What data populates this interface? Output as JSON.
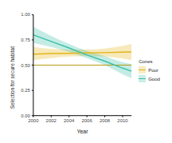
{
  "chart_data": {
    "type": "line",
    "x_label": "Year",
    "y_label": "Selection for secure habitat",
    "legend_title": "Cones",
    "legend": "right",
    "x": [
      2000,
      2002,
      2004,
      2006,
      2008,
      2010,
      2011
    ],
    "series": [
      {
        "name": "Poor",
        "color": "#e3b51c",
        "values": [
          0.61,
          0.615,
          0.618,
          0.621,
          0.624,
          0.628,
          0.63
        ],
        "lower": [
          0.55,
          0.57,
          0.585,
          0.59,
          0.585,
          0.565,
          0.55
        ],
        "upper": [
          0.68,
          0.66,
          0.655,
          0.655,
          0.665,
          0.69,
          0.71
        ]
      },
      {
        "name": "Good",
        "color": "#3cc0a8",
        "values": [
          0.8,
          0.735,
          0.67,
          0.6,
          0.54,
          0.47,
          0.44
        ],
        "lower": [
          0.72,
          0.68,
          0.63,
          0.57,
          0.5,
          0.41,
          0.37
        ],
        "upper": [
          0.88,
          0.79,
          0.71,
          0.64,
          0.59,
          0.53,
          0.51
        ]
      }
    ],
    "hline": 0.5,
    "xlim": [
      2000,
      2011
    ],
    "xticks": [
      2000,
      2002,
      2004,
      2006,
      2008,
      2010
    ],
    "ylim": [
      0,
      1
    ],
    "yticks": [
      {
        "value": 0,
        "label": "0.00"
      },
      {
        "value": 0.25,
        "label": "0.25"
      },
      {
        "value": 0.5,
        "label": "0.50"
      },
      {
        "value": 0.75,
        "label": "0.75"
      },
      {
        "value": 1,
        "label": "1.00"
      }
    ],
    "grid": false
  }
}
